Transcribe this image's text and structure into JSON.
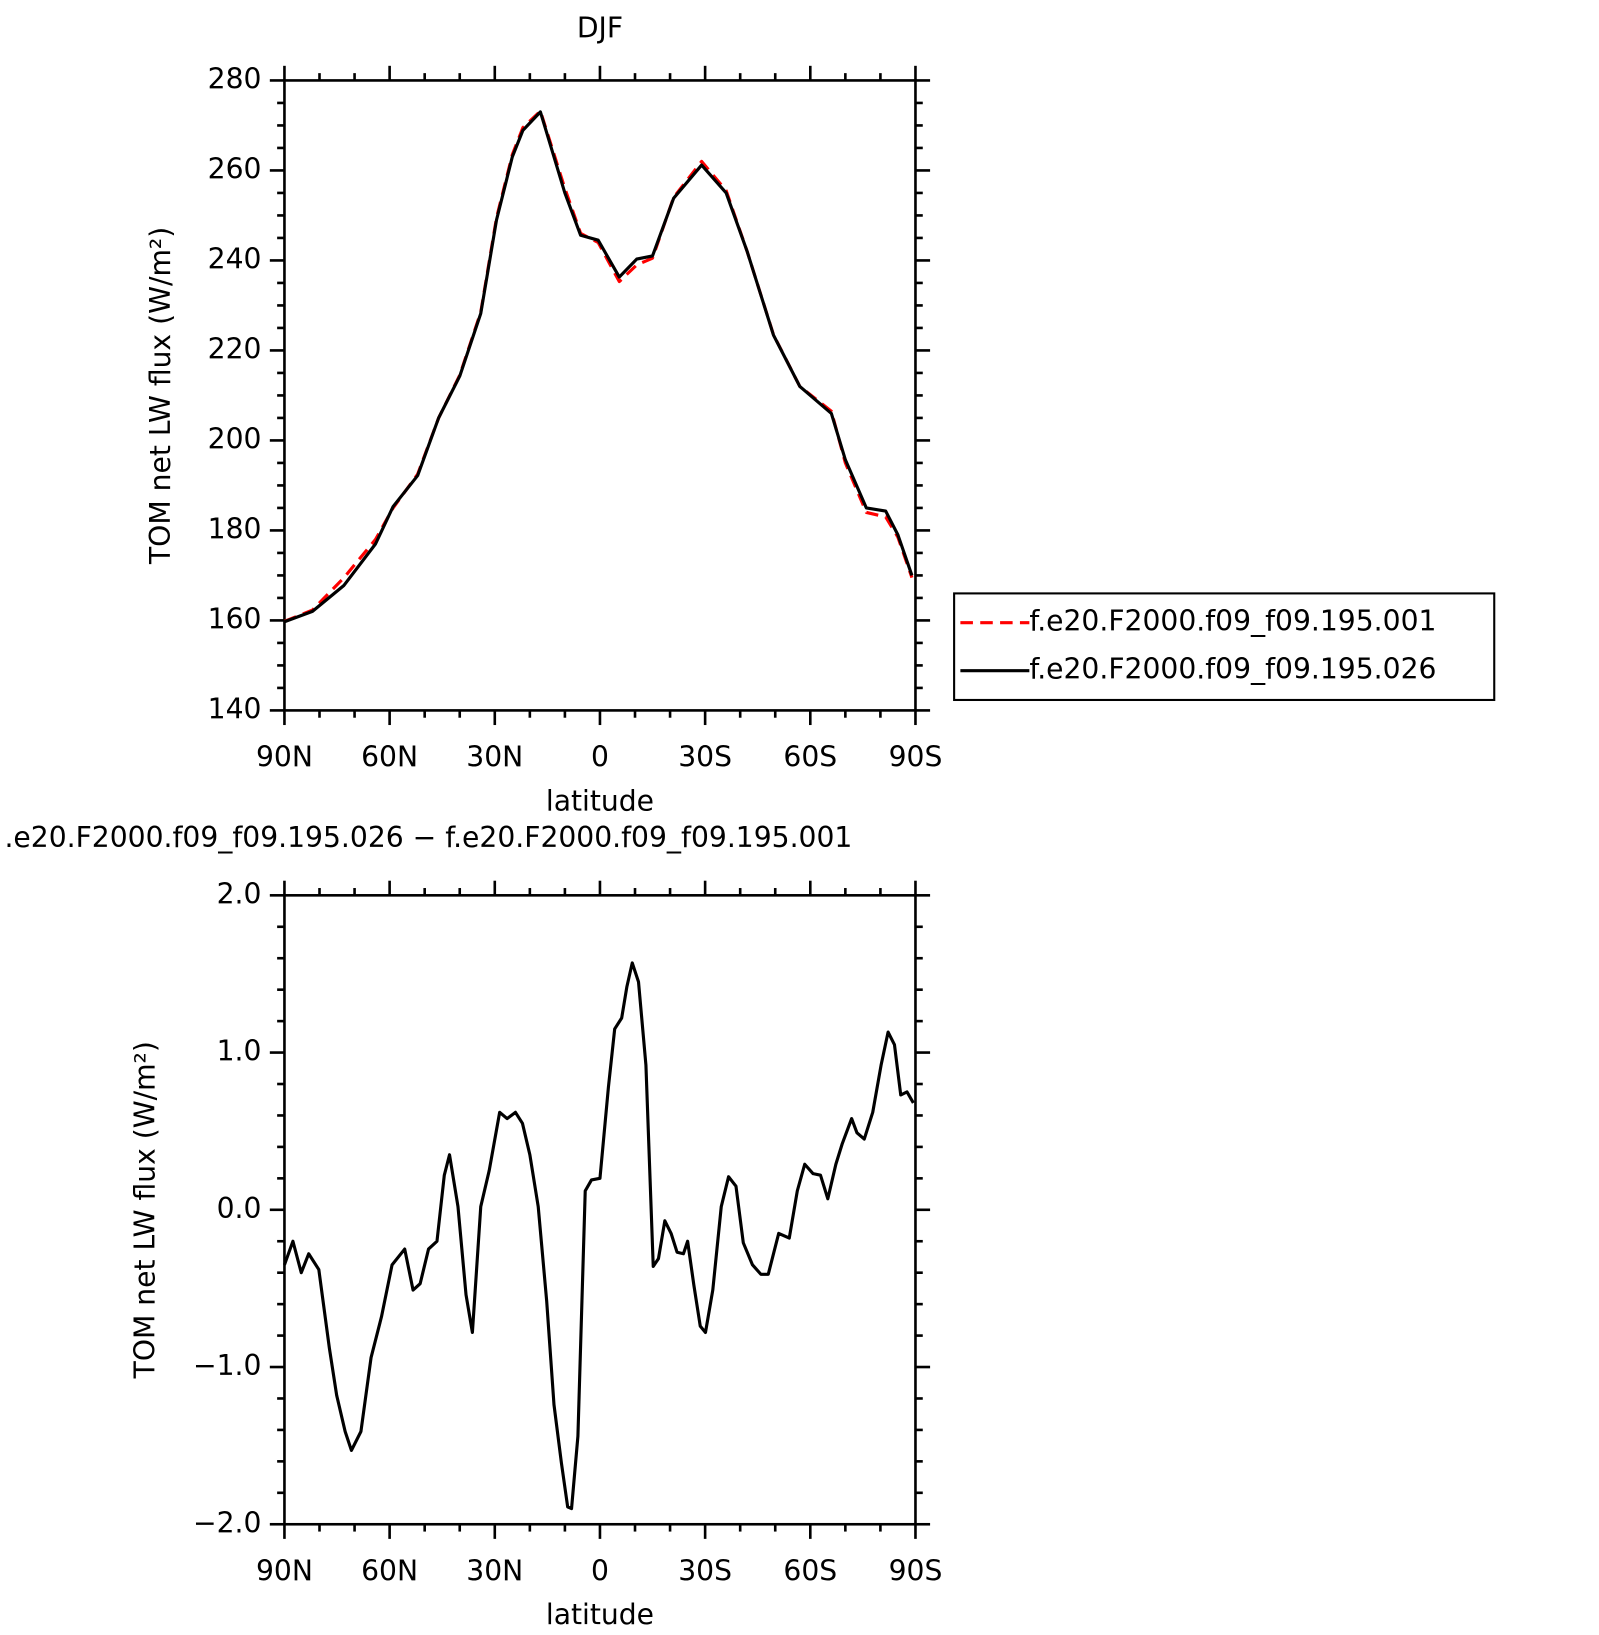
{
  "chart_data": [
    {
      "type": "line",
      "title": "DJF",
      "xlabel": "latitude",
      "ylabel": "TOM net LW flux (W/m²)",
      "x": [
        90,
        82,
        73,
        64,
        59,
        52,
        46,
        40,
        34,
        29.5,
        25,
        22,
        17,
        10,
        5.5,
        0.5,
        -5.5,
        -10.5,
        -15,
        -21,
        -29,
        -36,
        -42,
        -49.5,
        -57,
        -66,
        -70,
        -76,
        -81.5,
        -85,
        -89
      ],
      "series": [
        {
          "name": "f.e20.F2000.f09_f09.195.001",
          "color": "#ff0000",
          "linestyle": "dashed",
          "values": [
            159.8,
            162.3,
            169.5,
            178,
            185,
            192.5,
            205,
            214.5,
            228.5,
            249.5,
            263.5,
            269.5,
            273.2,
            256,
            246,
            244,
            235.3,
            239,
            240.5,
            254,
            262,
            255.5,
            242,
            223.5,
            212,
            206.5,
            195,
            184,
            183,
            178.5,
            169.5
          ]
        },
        {
          "name": "f.e20.F2000.f09_f09.195.026",
          "color": "#000000",
          "linestyle": "solid",
          "values": [
            159.7,
            162,
            167.8,
            177,
            185.3,
            192.2,
            205,
            214.3,
            228.2,
            249,
            263,
            268.9,
            273,
            255,
            245.6,
            244.5,
            236.3,
            240.3,
            241,
            253.8,
            261.2,
            255,
            242,
            223.4,
            212,
            206,
            195.7,
            185,
            184.3,
            179,
            170
          ]
        }
      ],
      "xlim": [
        90,
        -90
      ],
      "xticks": [
        {
          "value": 90,
          "label": "90N"
        },
        {
          "value": 60,
          "label": "60N"
        },
        {
          "value": 30,
          "label": "30N"
        },
        0,
        {
          "value": -30,
          "label": "30S"
        },
        {
          "value": -60,
          "label": "60S"
        },
        {
          "value": -90,
          "label": "90S"
        }
      ],
      "ylim": [
        140,
        280
      ],
      "yticks": [
        140,
        160,
        180,
        200,
        220,
        240,
        260,
        280
      ],
      "legend": "right"
    },
    {
      "type": "line",
      "title": ".e20.F2000.f09_f09.195.026 − f.e20.F2000.f09_f09.195.001",
      "xlabel": "latitude",
      "ylabel": "TOM net LW flux (W/m²)",
      "x": [
        90,
        87.6,
        85.2,
        83.1,
        80.2,
        77.2,
        75.1,
        72.7,
        70.9,
        68.2,
        65.3,
        62.3,
        59.3,
        55.7,
        53.3,
        51.3,
        48.9,
        46.5,
        44.4,
        42.9,
        40.5,
        38.2,
        36.4,
        34,
        31.6,
        28.6,
        26.5,
        24.1,
        22.1,
        20,
        17.6,
        15.2,
        13.1,
        11,
        9.2,
        8.1,
        6.3,
        4.2,
        2.4,
        0,
        -2.4,
        -4.2,
        -6.2,
        -7.7,
        -9.2,
        -11,
        -13.1,
        -15.2,
        -16.7,
        -18.5,
        -20.3,
        -22,
        -23.8,
        -25,
        -26.8,
        -28.6,
        -30.1,
        -32.2,
        -34.6,
        -36.7,
        -38.8,
        -40.9,
        -43.5,
        -45.9,
        -48,
        -51,
        -54,
        -56.3,
        -58.4,
        -60.8,
        -62.9,
        -65,
        -67.3,
        -69.1,
        -71.8,
        -73.3,
        -75.4,
        -77.8,
        -80.2,
        -82.2,
        -84,
        -85.8,
        -87.6,
        -89.4
      ],
      "series": [
        {
          "color": "#000000",
          "linestyle": "solid",
          "values": [
            -0.35,
            -0.2,
            -0.4,
            -0.28,
            -0.38,
            -0.88,
            -1.18,
            -1.41,
            -1.53,
            -1.41,
            -0.94,
            -0.68,
            -0.35,
            -0.25,
            -0.51,
            -0.47,
            -0.25,
            -0.2,
            0.22,
            0.35,
            0.02,
            -0.54,
            -0.78,
            0.02,
            0.25,
            0.62,
            0.58,
            0.62,
            0.55,
            0.35,
            0.02,
            -0.58,
            -1.24,
            -1.61,
            -1.89,
            -1.9,
            -1.44,
            0.12,
            0.19,
            0.2,
            0.78,
            1.15,
            1.22,
            1.42,
            1.57,
            1.45,
            0.92,
            -0.36,
            -0.31,
            -0.07,
            -0.15,
            -0.27,
            -0.28,
            -0.2,
            -0.48,
            -0.74,
            -0.78,
            -0.51,
            0.02,
            0.21,
            0.15,
            -0.21,
            -0.35,
            -0.41,
            -0.41,
            -0.15,
            -0.18,
            0.12,
            0.29,
            0.23,
            0.22,
            0.07,
            0.29,
            0.42,
            0.58,
            0.49,
            0.45,
            0.62,
            0.92,
            1.13,
            1.05,
            0.73,
            0.75,
            0.68
          ]
        }
      ],
      "xlim": [
        90,
        -90
      ],
      "xticks": [
        {
          "value": 90,
          "label": "90N"
        },
        {
          "value": 60,
          "label": "60N"
        },
        {
          "value": 30,
          "label": "30N"
        },
        0,
        {
          "value": -30,
          "label": "30S"
        },
        {
          "value": -60,
          "label": "60S"
        },
        {
          "value": -90,
          "label": "90S"
        }
      ],
      "ylim": [
        -2,
        2
      ],
      "yticks": [
        {
          "value": -2,
          "label": "−2.0"
        },
        {
          "value": -1,
          "label": "−1.0"
        },
        {
          "value": 0,
          "label": "0.0"
        },
        {
          "value": 1,
          "label": "1.0"
        },
        {
          "value": 2,
          "label": "2.0"
        }
      ]
    }
  ]
}
